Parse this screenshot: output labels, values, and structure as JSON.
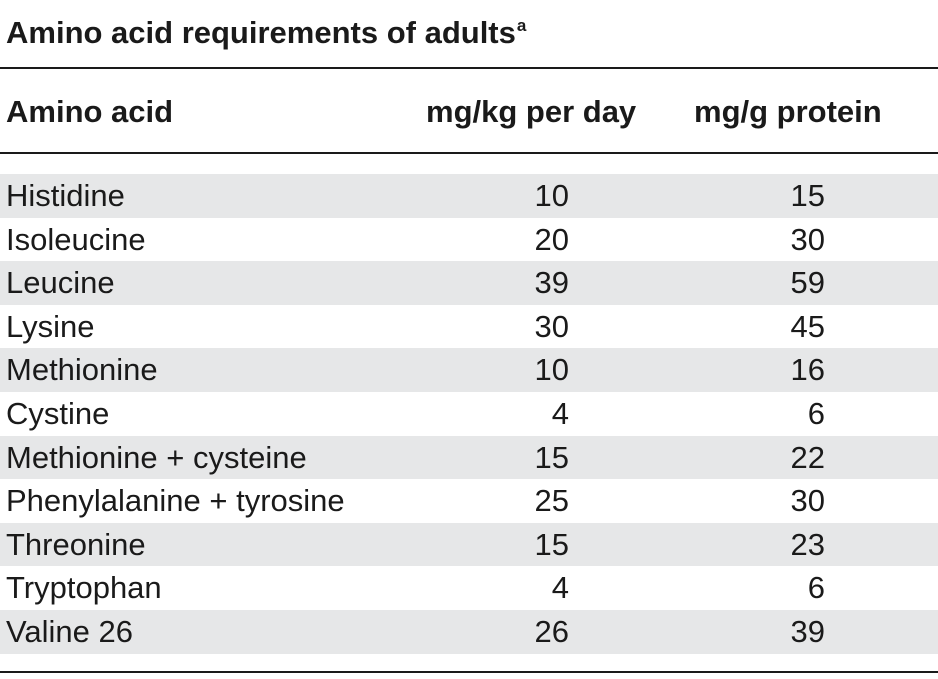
{
  "table": {
    "title": "Amino acid requirements of adults",
    "title_sup": "a",
    "headers": {
      "name": "Amino acid",
      "col1": "mg/kg per day",
      "col2": "mg/g protein"
    },
    "rows": [
      {
        "name": "Histidine",
        "mg_kg_day": "10",
        "mg_g_protein": "15"
      },
      {
        "name": "Isoleucine",
        "mg_kg_day": "20",
        "mg_g_protein": "30"
      },
      {
        "name": "Leucine",
        "mg_kg_day": "39",
        "mg_g_protein": "59"
      },
      {
        "name": "Lysine",
        "mg_kg_day": "30",
        "mg_g_protein": "45"
      },
      {
        "name": "Methionine",
        "mg_kg_day": "10",
        "mg_g_protein": "16"
      },
      {
        "name": "Cystine",
        "mg_kg_day": "4",
        "mg_g_protein": "6"
      },
      {
        "name": "Methionine + cysteine",
        "mg_kg_day": "15",
        "mg_g_protein": "22"
      },
      {
        "name": "Phenylalanine + tyrosine",
        "mg_kg_day": "25",
        "mg_g_protein": "30"
      },
      {
        "name": "Threonine",
        "mg_kg_day": "15",
        "mg_g_protein": "23"
      },
      {
        "name": "Tryptophan",
        "mg_kg_day": "4",
        "mg_g_protein": "6"
      },
      {
        "name": "Valine 26",
        "mg_kg_day": "26",
        "mg_g_protein": "39"
      }
    ],
    "row_shading": "#e6e7e8"
  }
}
